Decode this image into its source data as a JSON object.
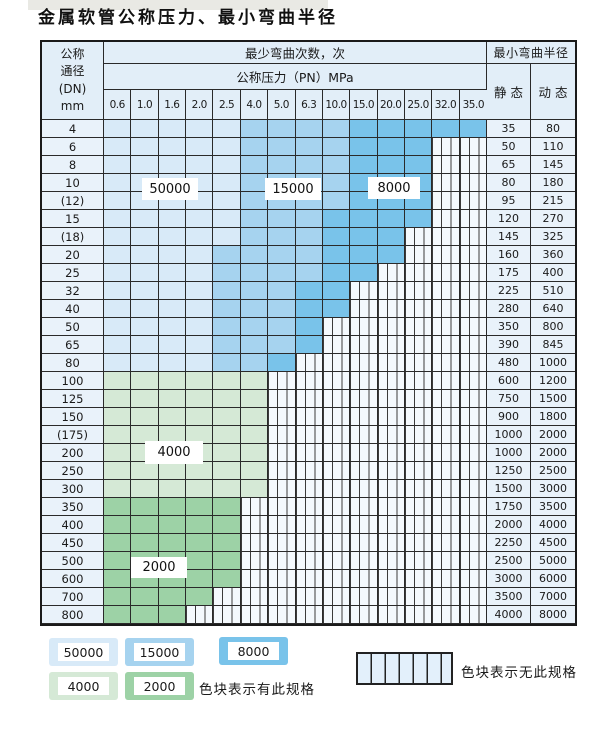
{
  "title": "金属软管公称压力、最小弯曲半径",
  "colors": {
    "z50000": "#d8eaf8",
    "z15000": "#a6d3ef",
    "z8000": "#79c3ea",
    "z4000": "#d5e9d6",
    "z2000": "#9dd2a6",
    "hatch_bg": "#f4f9fd",
    "cell_bg": "#e9f2fa",
    "header_bg": "#e2eef8"
  },
  "header": {
    "dn_lines": [
      "公称",
      "通径",
      "(DN)",
      "mm"
    ],
    "bend_cycles": "最少弯曲次数，次",
    "pressure": "公称压力（PN）MPa",
    "radius": "最小弯曲半径",
    "static": "静 态",
    "dynamic": "动 态",
    "pressures": [
      "0.6",
      "1.0",
      "1.6",
      "2.0",
      "2.5",
      "4.0",
      "5.0",
      "6.3",
      "10.0",
      "15.0",
      "20.0",
      "25.0",
      "32.0",
      "35.0"
    ]
  },
  "rows": [
    {
      "dn": "4",
      "zones": [
        [
          "z50000",
          5
        ],
        [
          "z15000",
          4
        ],
        [
          "z8000",
          5
        ]
      ],
      "static": "35",
      "dynamic": "80"
    },
    {
      "dn": "6",
      "zones": [
        [
          "z50000",
          5
        ],
        [
          "z15000",
          4
        ],
        [
          "z8000",
          3
        ]
      ],
      "static": "50",
      "dynamic": "110"
    },
    {
      "dn": "8",
      "zones": [
        [
          "z50000",
          5
        ],
        [
          "z15000",
          4
        ],
        [
          "z8000",
          3
        ]
      ],
      "static": "65",
      "dynamic": "145"
    },
    {
      "dn": "10",
      "zones": [
        [
          "z50000",
          5
        ],
        [
          "z15000",
          4
        ],
        [
          "z8000",
          3
        ]
      ],
      "static": "80",
      "dynamic": "180"
    },
    {
      "dn": "(12)",
      "zones": [
        [
          "z50000",
          5
        ],
        [
          "z15000",
          4
        ],
        [
          "z8000",
          3
        ]
      ],
      "static": "95",
      "dynamic": "215"
    },
    {
      "dn": "15",
      "zones": [
        [
          "z50000",
          5
        ],
        [
          "z15000",
          3
        ],
        [
          "z8000",
          4
        ]
      ],
      "static": "120",
      "dynamic": "270"
    },
    {
      "dn": "(18)",
      "zones": [
        [
          "z50000",
          5
        ],
        [
          "z15000",
          3
        ],
        [
          "z8000",
          3
        ]
      ],
      "static": "145",
      "dynamic": "325"
    },
    {
      "dn": "20",
      "zones": [
        [
          "z50000",
          4
        ],
        [
          "z15000",
          4
        ],
        [
          "z8000",
          3
        ]
      ],
      "static": "160",
      "dynamic": "360"
    },
    {
      "dn": "25",
      "zones": [
        [
          "z50000",
          4
        ],
        [
          "z15000",
          4
        ],
        [
          "z8000",
          2
        ]
      ],
      "static": "175",
      "dynamic": "400"
    },
    {
      "dn": "32",
      "zones": [
        [
          "z50000",
          4
        ],
        [
          "z15000",
          3
        ],
        [
          "z8000",
          2
        ]
      ],
      "static": "225",
      "dynamic": "510"
    },
    {
      "dn": "40",
      "zones": [
        [
          "z50000",
          4
        ],
        [
          "z15000",
          3
        ],
        [
          "z8000",
          2
        ]
      ],
      "static": "280",
      "dynamic": "640"
    },
    {
      "dn": "50",
      "zones": [
        [
          "z50000",
          4
        ],
        [
          "z15000",
          3
        ],
        [
          "z8000",
          1
        ]
      ],
      "static": "350",
      "dynamic": "800"
    },
    {
      "dn": "65",
      "zones": [
        [
          "z50000",
          4
        ],
        [
          "z15000",
          3
        ],
        [
          "z8000",
          1
        ]
      ],
      "static": "390",
      "dynamic": "845"
    },
    {
      "dn": "80",
      "zones": [
        [
          "z50000",
          4
        ],
        [
          "z15000",
          2
        ],
        [
          "z8000",
          1
        ]
      ],
      "static": "480",
      "dynamic": "1000"
    },
    {
      "dn": "100",
      "zones": [
        [
          "z4000",
          6
        ]
      ],
      "static": "600",
      "dynamic": "1200"
    },
    {
      "dn": "125",
      "zones": [
        [
          "z4000",
          6
        ]
      ],
      "static": "750",
      "dynamic": "1500"
    },
    {
      "dn": "150",
      "zones": [
        [
          "z4000",
          6
        ]
      ],
      "static": "900",
      "dynamic": "1800"
    },
    {
      "dn": "(175)",
      "zones": [
        [
          "z4000",
          6
        ]
      ],
      "static": "1000",
      "dynamic": "2000"
    },
    {
      "dn": "200",
      "zones": [
        [
          "z4000",
          6
        ]
      ],
      "static": "1000",
      "dynamic": "2000"
    },
    {
      "dn": "250",
      "zones": [
        [
          "z4000",
          6
        ]
      ],
      "static": "1250",
      "dynamic": "2500"
    },
    {
      "dn": "300",
      "zones": [
        [
          "z4000",
          6
        ]
      ],
      "static": "1500",
      "dynamic": "3000"
    },
    {
      "dn": "350",
      "zones": [
        [
          "z2000",
          5
        ]
      ],
      "static": "1750",
      "dynamic": "3500"
    },
    {
      "dn": "400",
      "zones": [
        [
          "z2000",
          5
        ]
      ],
      "static": "2000",
      "dynamic": "4000"
    },
    {
      "dn": "450",
      "zones": [
        [
          "z2000",
          5
        ]
      ],
      "static": "2250",
      "dynamic": "4500"
    },
    {
      "dn": "500",
      "zones": [
        [
          "z2000",
          5
        ]
      ],
      "static": "2500",
      "dynamic": "5000"
    },
    {
      "dn": "600",
      "zones": [
        [
          "z2000",
          5
        ]
      ],
      "static": "3000",
      "dynamic": "6000"
    },
    {
      "dn": "700",
      "zones": [
        [
          "z2000",
          4
        ]
      ],
      "static": "3500",
      "dynamic": "7000"
    },
    {
      "dn": "800",
      "zones": [
        [
          "z2000",
          3
        ]
      ],
      "static": "4000",
      "dynamic": "8000"
    }
  ],
  "overlays": {
    "o50000": "50000",
    "o15000": "15000",
    "o8000": "8000",
    "o4000": "4000",
    "o2000": "2000"
  },
  "legend": {
    "items": [
      {
        "key": "z50000",
        "label": "50000"
      },
      {
        "key": "z15000",
        "label": "15000"
      },
      {
        "key": "z8000",
        "label": "8000"
      },
      {
        "key": "z4000",
        "label": "4000"
      },
      {
        "key": "z2000",
        "label": "2000"
      }
    ],
    "has_spec": "色块表示有此规格",
    "no_spec": "色块表示无此规格"
  }
}
